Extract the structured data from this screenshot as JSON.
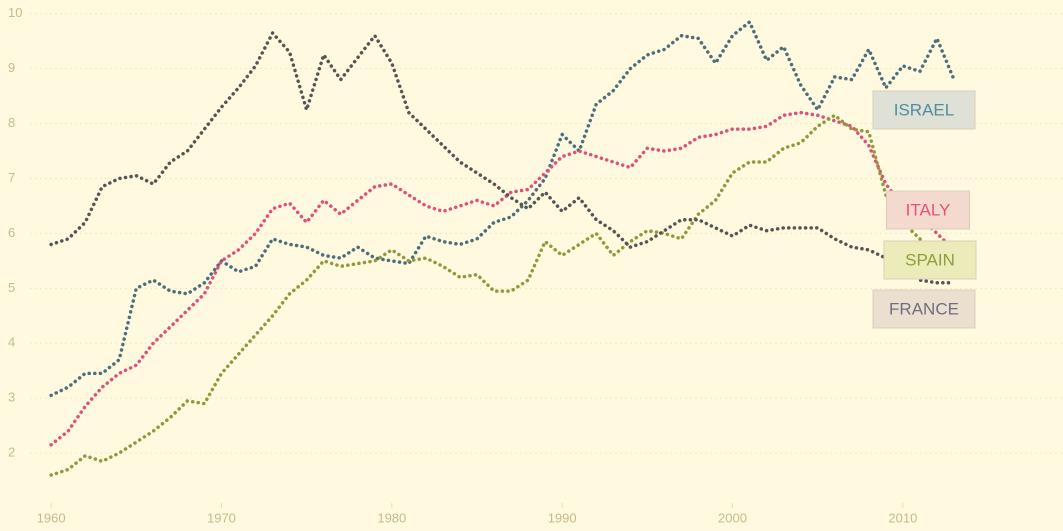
{
  "chart_data": {
    "type": "line",
    "x": [
      1960,
      1961,
      1962,
      1963,
      1964,
      1965,
      1966,
      1967,
      1968,
      1969,
      1970,
      1971,
      1972,
      1973,
      1974,
      1975,
      1976,
      1977,
      1978,
      1979,
      1980,
      1981,
      1982,
      1983,
      1984,
      1985,
      1986,
      1987,
      1988,
      1989,
      1990,
      1991,
      1992,
      1993,
      1994,
      1995,
      1996,
      1997,
      1998,
      1999,
      2000,
      2001,
      2002,
      2003,
      2004,
      2005,
      2006,
      2007,
      2008,
      2009,
      2010,
      2011,
      2012,
      2013
    ],
    "series": [
      {
        "name": "ISRAEL",
        "color": "#4d6e7c",
        "values": [
          3.05,
          3.2,
          3.45,
          3.45,
          3.7,
          5.0,
          5.15,
          4.95,
          4.9,
          5.1,
          5.5,
          5.3,
          5.4,
          5.9,
          5.8,
          5.75,
          5.6,
          5.55,
          5.75,
          5.55,
          5.5,
          5.45,
          5.95,
          5.85,
          5.8,
          5.9,
          6.2,
          6.3,
          6.6,
          7.0,
          7.8,
          7.5,
          8.35,
          8.6,
          9.0,
          9.25,
          9.35,
          9.6,
          9.55,
          9.1,
          9.6,
          9.85,
          9.15,
          9.4,
          8.7,
          8.25,
          8.85,
          8.8,
          9.35,
          8.65,
          9.05,
          8.95,
          9.55,
          8.8
        ]
      },
      {
        "name": "ITALY",
        "color": "#e0507a",
        "values": [
          2.15,
          2.4,
          2.85,
          3.2,
          3.45,
          3.6,
          4.0,
          4.3,
          4.6,
          4.9,
          5.5,
          5.7,
          6.0,
          6.45,
          6.55,
          6.2,
          6.6,
          6.35,
          6.6,
          6.85,
          6.9,
          6.7,
          6.5,
          6.4,
          6.5,
          6.6,
          6.5,
          6.75,
          6.8,
          7.1,
          7.4,
          7.5,
          7.4,
          7.3,
          7.2,
          7.55,
          7.5,
          7.55,
          7.75,
          7.8,
          7.9,
          7.9,
          7.95,
          8.15,
          8.2,
          8.15,
          8.05,
          7.95,
          7.6,
          6.9,
          6.5,
          6.3,
          6.0,
          5.7
        ]
      },
      {
        "name": "SPAIN",
        "color": "#8f9a3c",
        "values": [
          1.6,
          1.7,
          1.95,
          1.85,
          2.0,
          2.2,
          2.4,
          2.65,
          2.95,
          2.9,
          3.45,
          3.8,
          4.15,
          4.5,
          4.9,
          5.15,
          5.5,
          5.4,
          5.45,
          5.5,
          5.7,
          5.5,
          5.55,
          5.4,
          5.2,
          5.25,
          4.95,
          4.95,
          5.15,
          5.85,
          5.6,
          5.8,
          6.0,
          5.6,
          5.85,
          6.05,
          6.0,
          5.9,
          6.35,
          6.6,
          7.1,
          7.3,
          7.3,
          7.55,
          7.65,
          7.95,
          8.15,
          7.9,
          7.85,
          6.7,
          6.2,
          5.9,
          5.6,
          5.3
        ]
      },
      {
        "name": "FRANCE",
        "color": "#555555",
        "values": [
          5.8,
          5.9,
          6.2,
          6.85,
          7.0,
          7.05,
          6.9,
          7.3,
          7.5,
          7.9,
          8.3,
          8.65,
          9.05,
          9.65,
          9.3,
          8.25,
          9.25,
          8.8,
          9.2,
          9.6,
          9.1,
          8.2,
          7.9,
          7.6,
          7.3,
          7.1,
          6.9,
          6.65,
          6.45,
          6.75,
          6.4,
          6.65,
          6.25,
          6.05,
          5.75,
          5.85,
          6.05,
          6.25,
          6.25,
          6.1,
          5.95,
          6.15,
          6.05,
          6.1,
          6.1,
          6.1,
          5.9,
          5.75,
          5.7,
          5.55,
          5.35,
          5.15,
          5.1,
          5.1
        ]
      }
    ],
    "xlim": [
      1957,
      2019.4
    ],
    "xticks": [
      1960,
      1970,
      1980,
      1990,
      2000,
      2010
    ],
    "ylim": [
      1.2,
      10.25
    ],
    "yticks": [
      2,
      3,
      4,
      5,
      6,
      7,
      8,
      9,
      10
    ],
    "grid": true
  }
}
